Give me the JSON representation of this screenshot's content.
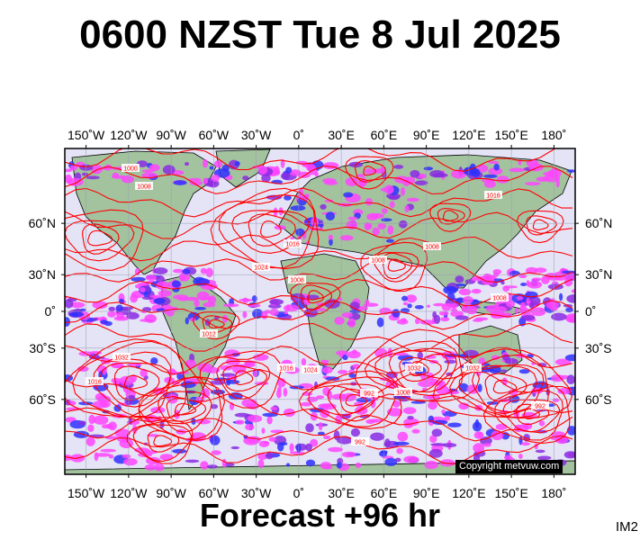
{
  "header": {
    "title": "0600 NZST Tue 8 Jul 2025"
  },
  "footer": {
    "forecast_label": "Forecast +96 hr",
    "corner_tag": "IM2"
  },
  "map": {
    "copyright": "Copyright metvuw.com",
    "projection": "mercator",
    "lon_ticks": [
      "150˚W",
      "120˚W",
      "90˚W",
      "60˚W",
      "30˚W",
      "0˚",
      "30˚E",
      "60˚E",
      "90˚E",
      "120˚E",
      "150˚E",
      "180˚"
    ],
    "lon_values": [
      -150,
      -120,
      -90,
      -60,
      -30,
      0,
      30,
      60,
      90,
      120,
      150,
      180
    ],
    "lat_ticks": [
      "60˚N",
      "30˚N",
      "0˚",
      "30˚S",
      "60˚S"
    ],
    "lat_values": [
      60,
      30,
      0,
      -30,
      -60
    ],
    "lon_range": [
      -165,
      195
    ],
    "lat_range": [
      -80,
      80
    ],
    "isobar_labels": [
      "1008",
      "1008",
      "1016",
      "1024",
      "1016",
      "1008",
      "1012",
      "1000",
      "1008",
      "1008",
      "1032",
      "1016",
      "1016",
      "1024",
      "1032",
      "992",
      "1008",
      "1032",
      "992",
      "992"
    ],
    "colors": {
      "ocean": "#e4e4f6",
      "land": "#a3c39f",
      "isobar": "#ff0000",
      "precip_light": "#ff44ff",
      "precip_mid": "#8a2be2",
      "precip_heavy": "#3030ff",
      "frame": "#000000"
    }
  }
}
